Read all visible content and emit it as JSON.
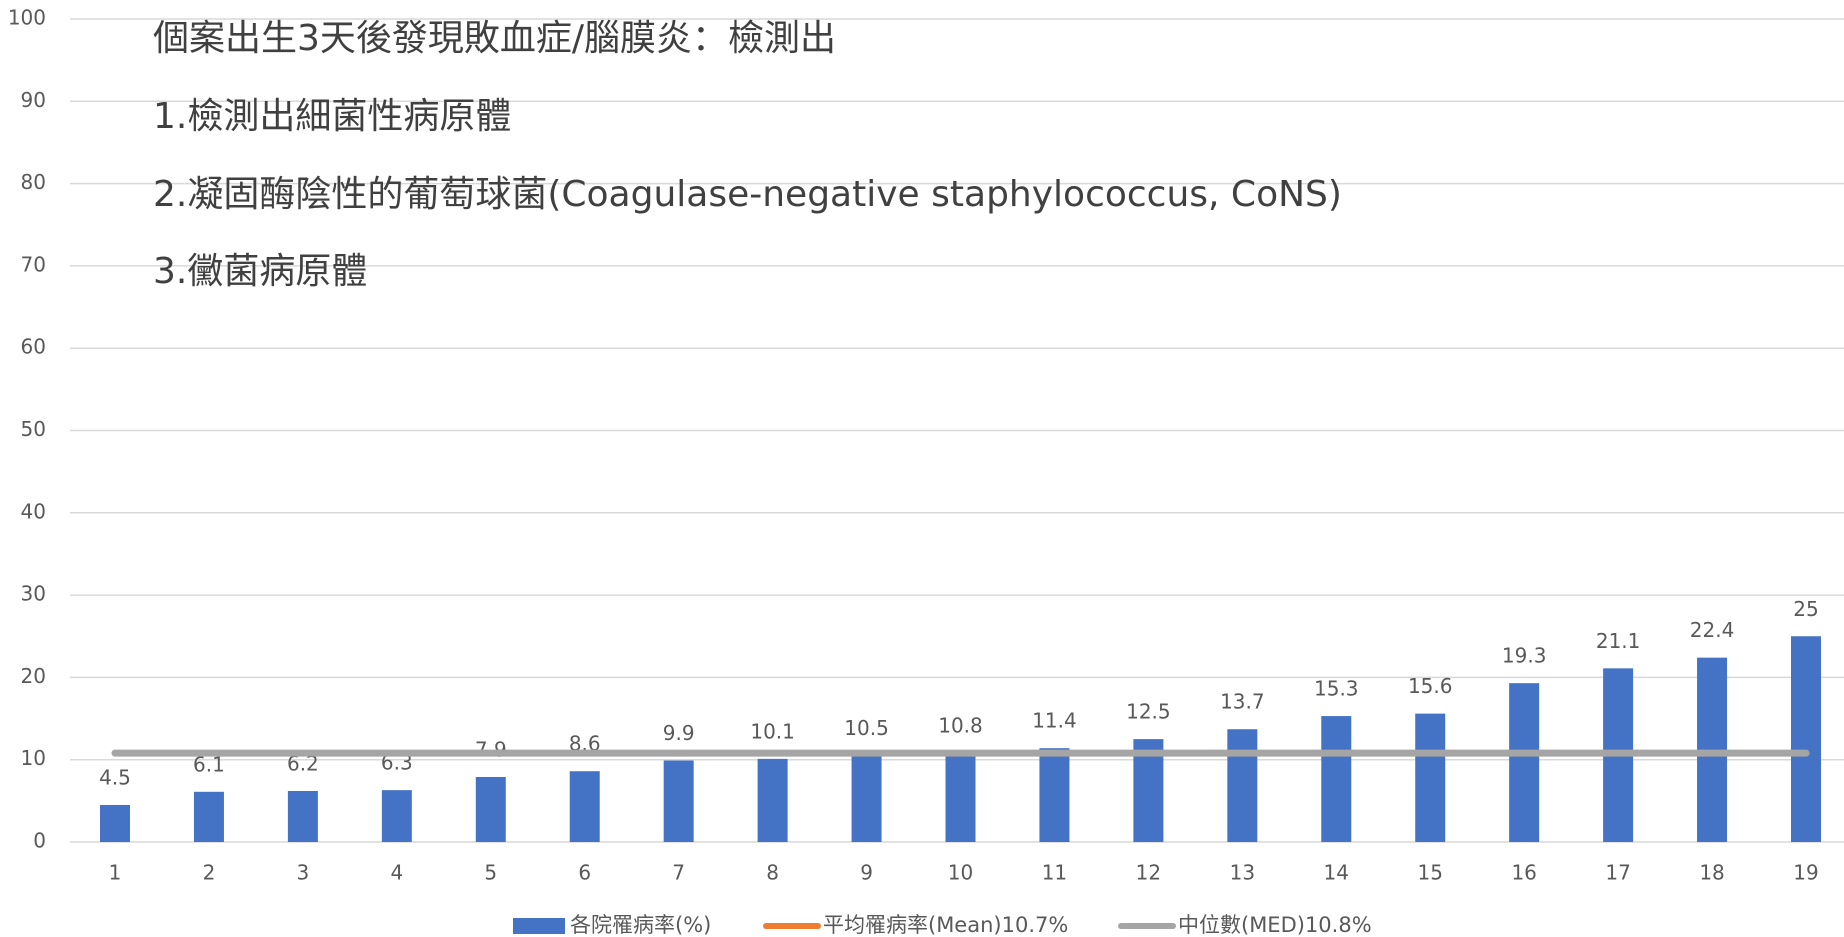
{
  "chart_data": {
    "type": "bar",
    "annotations": [
      "個案出生3天後發現敗血症/腦膜炎：檢測出",
      "1.檢測出細菌性病原體",
      "2.凝固酶陰性的葡萄球菌(Coagulase-negative staphylococcus, CoNS)",
      "3.黴菌病原體"
    ],
    "categories": [
      "1",
      "2",
      "3",
      "4",
      "5",
      "6",
      "7",
      "8",
      "9",
      "10",
      "11",
      "12",
      "13",
      "14",
      "15",
      "16",
      "17",
      "18",
      "19"
    ],
    "series": [
      {
        "name": "各院罹病率(%)",
        "color": "#4472c4",
        "values": [
          4.5,
          6.1,
          6.2,
          6.3,
          7.9,
          8.6,
          9.9,
          10.1,
          10.5,
          10.8,
          11.4,
          12.5,
          13.7,
          15.3,
          15.6,
          19.3,
          21.1,
          22.4,
          25
        ]
      }
    ],
    "reference_lines": [
      {
        "name": "平均罹病率(Mean)10.7%",
        "color": "#ed7d31",
        "value": 10.7
      },
      {
        "name": "中位數(MED)10.8%",
        "color": "#a5a5a5",
        "value": 10.8
      }
    ],
    "ylim": [
      0,
      100
    ],
    "yticks": [
      0,
      10,
      20,
      30,
      40,
      50,
      60,
      70,
      80,
      90,
      100
    ],
    "grid": true,
    "legend": "bottom"
  }
}
